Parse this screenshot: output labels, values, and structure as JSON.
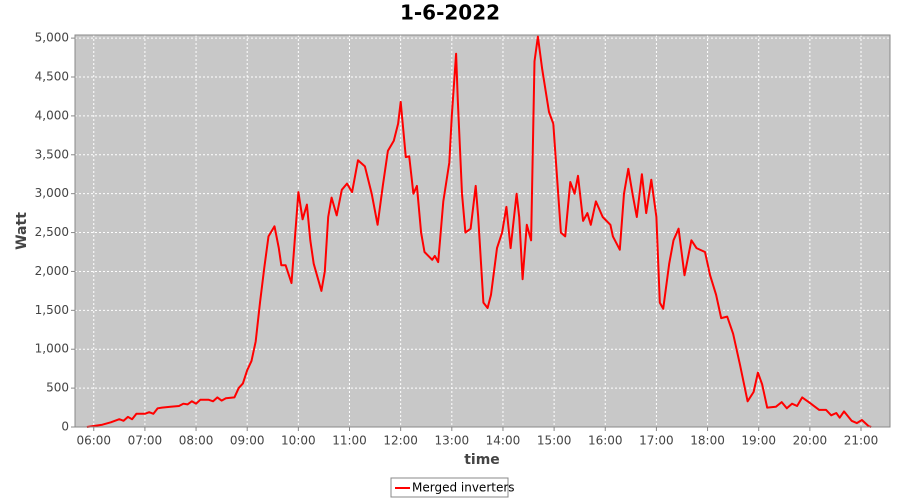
{
  "chart_data": {
    "type": "line",
    "title": "1-6-2022",
    "x_label": "time",
    "y_label": "Watt",
    "x": [
      "05:52",
      "06:10",
      "06:20",
      "06:30",
      "06:35",
      "06:40",
      "06:45",
      "06:50",
      "07:00",
      "07:05",
      "07:10",
      "07:15",
      "07:20",
      "07:30",
      "07:40",
      "07:45",
      "07:50",
      "07:55",
      "08:00",
      "08:05",
      "08:15",
      "08:20",
      "08:25",
      "08:30",
      "08:35",
      "08:45",
      "08:50",
      "08:55",
      "09:00",
      "09:05",
      "09:10",
      "09:15",
      "09:20",
      "09:25",
      "09:32",
      "09:37",
      "09:40",
      "09:45",
      "09:52",
      "10:00",
      "10:05",
      "10:10",
      "10:14",
      "10:18",
      "10:27",
      "10:31",
      "10:35",
      "10:39",
      "10:45",
      "10:51",
      "10:57",
      "11:03",
      "11:10",
      "11:18",
      "11:26",
      "11:33",
      "11:39",
      "11:45",
      "11:52",
      "11:57",
      "12:00",
      "12:06",
      "12:10",
      "12:15",
      "12:19",
      "12:24",
      "12:28",
      "12:37",
      "12:40",
      "12:44",
      "12:50",
      "12:57",
      "13:00",
      "13:05",
      "13:07",
      "13:12",
      "13:16",
      "13:22",
      "13:28",
      "13:31",
      "13:37",
      "13:42",
      "13:46",
      "13:53",
      "13:59",
      "14:04",
      "14:09",
      "14:16",
      "14:19",
      "14:23",
      "14:28",
      "14:33",
      "14:37",
      "14:41",
      "14:46",
      "14:54",
      "14:59",
      "15:08",
      "15:13",
      "15:19",
      "15:24",
      "15:28",
      "15:34",
      "15:39",
      "15:43",
      "15:49",
      "15:57",
      "16:06",
      "16:09",
      "16:17",
      "16:22",
      "16:27",
      "16:32",
      "16:37",
      "16:43",
      "16:48",
      "16:54",
      "17:00",
      "17:04",
      "17:08",
      "17:15",
      "17:20",
      "17:26",
      "17:33",
      "17:41",
      "17:47",
      "17:57",
      "18:03",
      "18:10",
      "18:16",
      "18:23",
      "18:30",
      "18:38",
      "18:47",
      "18:54",
      "18:59",
      "19:04",
      "19:10",
      "19:20",
      "19:27",
      "19:33",
      "19:39",
      "19:45",
      "19:51",
      "20:00",
      "20:11",
      "20:19",
      "20:25",
      "20:31",
      "20:35",
      "20:40",
      "20:49",
      "20:55",
      "21:01",
      "21:09",
      "21:12"
    ],
    "series": [
      {
        "name": "Merged inverters",
        "color": "#ff0000",
        "values": [
          0,
          30,
          60,
          100,
          80,
          130,
          100,
          170,
          170,
          190,
          170,
          240,
          250,
          260,
          270,
          300,
          290,
          330,
          300,
          350,
          350,
          330,
          380,
          340,
          370,
          380,
          500,
          560,
          730,
          850,
          1100,
          1600,
          2050,
          2450,
          2580,
          2300,
          2080,
          2080,
          1850,
          3020,
          2670,
          2860,
          2400,
          2100,
          1750,
          2000,
          2700,
          2950,
          2720,
          3050,
          3130,
          3020,
          3430,
          3350,
          3000,
          2600,
          3100,
          3550,
          3680,
          3900,
          4180,
          3470,
          3480,
          3000,
          3100,
          2500,
          2250,
          2150,
          2200,
          2120,
          2900,
          3400,
          4000,
          4800,
          4200,
          3000,
          2500,
          2550,
          3100,
          2700,
          1600,
          1530,
          1700,
          2300,
          2500,
          2830,
          2300,
          3000,
          2700,
          1900,
          2600,
          2400,
          4700,
          5020,
          4600,
          4050,
          3900,
          2500,
          2450,
          3150,
          3000,
          3230,
          2650,
          2750,
          2600,
          2900,
          2700,
          2600,
          2450,
          2280,
          3000,
          3320,
          3000,
          2700,
          3250,
          2750,
          3180,
          2700,
          1600,
          1520,
          2100,
          2400,
          2550,
          1950,
          2400,
          2300,
          2250,
          1950,
          1700,
          1400,
          1420,
          1200,
          800,
          330,
          450,
          700,
          550,
          250,
          260,
          320,
          240,
          300,
          270,
          380,
          310,
          220,
          220,
          150,
          180,
          120,
          200,
          80,
          50,
          90,
          10,
          0
        ]
      }
    ],
    "xlim": [
      "05:38",
      "21:34"
    ],
    "xticks": [
      "06:00",
      "07:00",
      "08:00",
      "09:00",
      "10:00",
      "11:00",
      "12:00",
      "13:00",
      "14:00",
      "15:00",
      "16:00",
      "17:00",
      "18:00",
      "19:00",
      "20:00",
      "21:00"
    ],
    "ylim": [
      0,
      5040
    ],
    "yticks": [
      0,
      500,
      {
        "value": 1000,
        "label": "1,000"
      },
      {
        "value": 1500,
        "label": "1,500"
      },
      {
        "value": 2000,
        "label": "2,000"
      },
      {
        "value": 2500,
        "label": "2,500"
      },
      {
        "value": 3000,
        "label": "3,000"
      },
      {
        "value": 3500,
        "label": "3,500"
      },
      {
        "value": 4000,
        "label": "4,000"
      },
      {
        "value": 4500,
        "label": "4,500"
      },
      {
        "value": 5000,
        "label": "5,000"
      }
    ],
    "grid": true,
    "legend": "bottom"
  }
}
